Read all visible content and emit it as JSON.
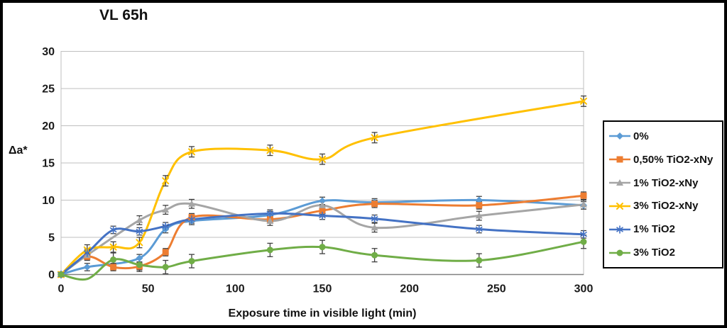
{
  "window": {
    "title": "VL 65h"
  },
  "chart_data": {
    "type": "line",
    "title": "VL 65h",
    "xlabel": "Exposure time in visible light (min)",
    "ylabel": "Δa*",
    "xlim": [
      0,
      300
    ],
    "ylim": [
      0,
      30
    ],
    "x_ticks": [
      0,
      50,
      100,
      150,
      200,
      250,
      300
    ],
    "y_ticks": [
      0,
      5,
      10,
      15,
      20,
      25,
      30
    ],
    "grid": "horizontal",
    "legend_position": "right",
    "error_bars": true,
    "line_style": "smoothed",
    "colors": {
      "grid": "#BFBFBF",
      "axis": "#808080",
      "error_bar": "#404040",
      "text": "#1A1A1A"
    },
    "x": [
      0,
      15,
      30,
      45,
      60,
      75,
      120,
      150,
      180,
      240,
      300
    ],
    "series": [
      {
        "name": "0%",
        "color": "#5B9BD5",
        "marker": "diamond",
        "error": 0.5,
        "values": [
          0,
          1.0,
          null,
          2.2,
          6.1,
          7.2,
          8.0,
          9.9,
          9.7,
          10.0,
          9.3
        ]
      },
      {
        "name": "0,50% TiO2-xNy",
        "color": "#ED7D31",
        "marker": "square",
        "error": 0.5,
        "values": [
          0,
          2.4,
          1.0,
          1.1,
          3.0,
          7.7,
          7.4,
          8.6,
          9.5,
          9.3,
          10.6
        ]
      },
      {
        "name": "1% TiO2-xNy",
        "color": "#A5A5A5",
        "marker": "triangle",
        "error": 0.6,
        "values": [
          0,
          2.6,
          null,
          7.3,
          8.7,
          9.5,
          7.2,
          9.3,
          6.3,
          7.9,
          9.4
        ]
      },
      {
        "name": "3% TiO2-xNy",
        "color": "#FFC000",
        "marker": "x",
        "error": 0.7,
        "values": [
          0,
          3.3,
          3.7,
          4.3,
          12.6,
          16.5,
          16.7,
          15.5,
          18.4,
          null,
          23.3
        ]
      },
      {
        "name": "1% TiO2",
        "color": "#4472C4",
        "marker": "asterisk",
        "error": 0.5,
        "values": [
          0,
          2.9,
          6.0,
          5.8,
          6.5,
          7.4,
          8.2,
          7.9,
          7.5,
          6.1,
          5.4
        ]
      },
      {
        "name": "3% TiO2",
        "color": "#70AD47",
        "marker": "circle",
        "error": 0.9,
        "values": [
          0,
          -0.6,
          2.0,
          1.3,
          1.0,
          1.8,
          3.3,
          3.7,
          2.6,
          1.9,
          4.4
        ]
      }
    ]
  }
}
